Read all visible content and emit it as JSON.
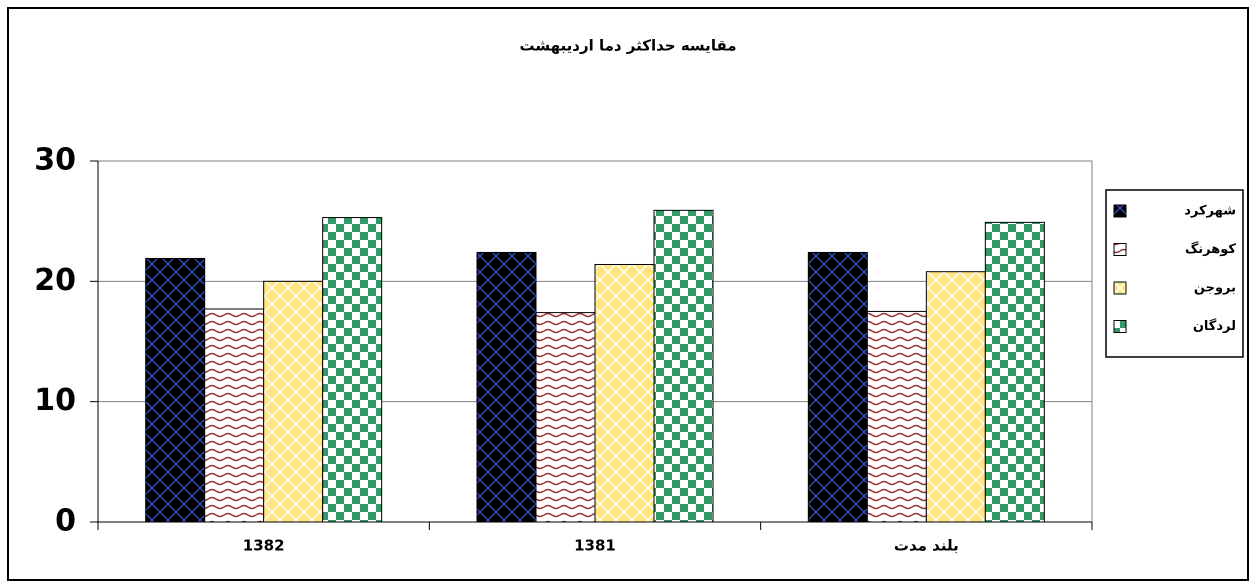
{
  "chart_data": {
    "type": "bar",
    "title": "مقایسه حداکثر دما اردیبهشت",
    "categories": [
      "1382",
      "1381",
      "بلند مدت"
    ],
    "series": [
      {
        "name": "شهرکرد",
        "color": "#000000",
        "values": [
          21.9,
          22.4,
          22.4
        ]
      },
      {
        "name": "کوهرنگ",
        "color": "#993333",
        "values": [
          17.7,
          17.4,
          17.5
        ]
      },
      {
        "name": "بروجن",
        "color": "#ffe680",
        "values": [
          20.0,
          21.4,
          20.8
        ]
      },
      {
        "name": "لردگان",
        "color": "#339966",
        "values": [
          25.3,
          25.9,
          24.9
        ]
      }
    ],
    "ylim": [
      0,
      30
    ],
    "yticks": [
      0,
      10,
      20,
      30
    ],
    "grid": true,
    "legend": "right"
  }
}
